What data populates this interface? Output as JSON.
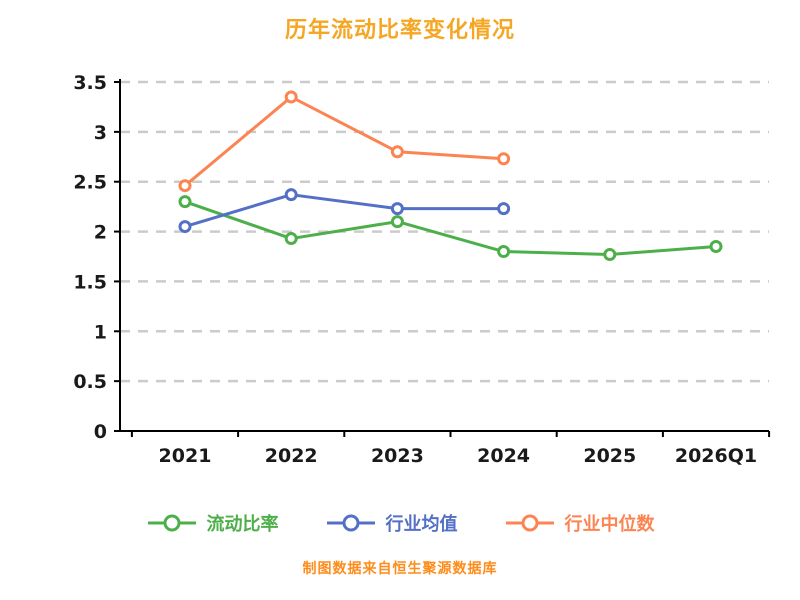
{
  "title_color": "#f5a623",
  "footer_color": "#ff8c1a",
  "axis_color": "#000000",
  "tick_label_color": "#1a1a1a",
  "gridline_color": "#cbcbcb",
  "chart_data": {
    "type": "line",
    "title": "历年流动比率变化情况",
    "x": [
      "2021",
      "2022",
      "2023",
      "2024",
      "2025",
      "2026Q1"
    ],
    "series": [
      {
        "name": "流动比率",
        "color": "#4daf4a",
        "values": [
          2.3,
          1.93,
          2.1,
          1.8,
          1.77,
          1.85
        ]
      },
      {
        "name": "行业均值",
        "color": "#5470c6",
        "values": [
          2.05,
          2.37,
          2.23,
          2.23,
          null,
          null
        ]
      },
      {
        "name": "行业中位数",
        "color": "#fc8452",
        "values": [
          2.46,
          3.35,
          2.8,
          2.73,
          null,
          null
        ]
      }
    ],
    "ylim": [
      0,
      3.5
    ],
    "yticks": [
      0,
      0.5,
      1,
      1.5,
      2,
      2.5,
      3,
      3.5
    ],
    "grid": "dashed-horizontal",
    "legend_position": "bottom",
    "footer": "制图数据来自恒生聚源数据库"
  }
}
